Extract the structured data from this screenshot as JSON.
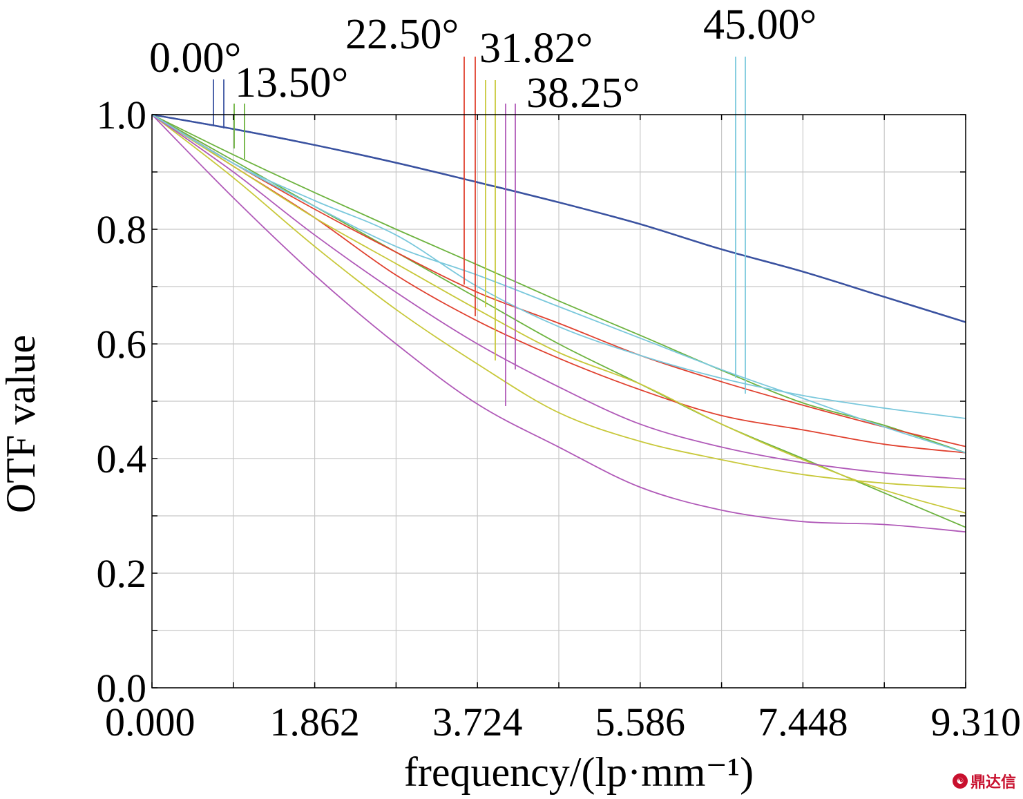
{
  "chart_data": {
    "type": "line",
    "title": "",
    "xlabel": "frequency/(lp·mm⁻¹)",
    "ylabel": "OTF value",
    "xlim": [
      0,
      9.31
    ],
    "ylim": [
      0,
      1.0
    ],
    "x_ticks": [
      "0.000",
      "1.862",
      "3.724",
      "5.586",
      "7.448",
      "9.310"
    ],
    "y_ticks": [
      "0.0",
      "0.2",
      "0.4",
      "0.6",
      "0.8",
      "1.0"
    ],
    "grid": true,
    "x": [
      0,
      0.931,
      1.862,
      2.793,
      3.724,
      4.655,
      5.586,
      6.517,
      7.448,
      8.379,
      9.31
    ],
    "series": [
      {
        "field": "0.00°",
        "color": "#3a52a0",
        "values": [
          1.0,
          0.975,
          0.947,
          0.916,
          0.882,
          0.847,
          0.809,
          0.765,
          0.726,
          0.682,
          0.638
        ]
      },
      {
        "field": "0.00°",
        "color": "#3a52a0",
        "values": [
          1.0,
          0.975,
          0.947,
          0.916,
          0.882,
          0.847,
          0.809,
          0.765,
          0.726,
          0.682,
          0.638
        ]
      },
      {
        "field": "13.50°",
        "color": "#6db33f",
        "values": [
          1.0,
          0.93,
          0.864,
          0.8,
          0.738,
          0.675,
          0.615,
          0.554,
          0.497,
          0.458,
          0.41
        ]
      },
      {
        "field": "13.50°",
        "color": "#6db33f",
        "values": [
          1.0,
          0.92,
          0.84,
          0.76,
          0.68,
          0.6,
          0.53,
          0.46,
          0.4,
          0.34,
          0.28
        ]
      },
      {
        "field": "22.50°",
        "color": "#e0412f",
        "values": [
          1.0,
          0.915,
          0.835,
          0.76,
          0.69,
          0.636,
          0.58,
          0.534,
          0.493,
          0.455,
          0.421
        ]
      },
      {
        "field": "22.50°",
        "color": "#e0412f",
        "values": [
          1.0,
          0.91,
          0.82,
          0.72,
          0.64,
          0.575,
          0.52,
          0.475,
          0.45,
          0.425,
          0.41
        ]
      },
      {
        "field": "31.82°",
        "color": "#c8c83a",
        "values": [
          1.0,
          0.91,
          0.82,
          0.74,
          0.66,
          0.585,
          0.53,
          0.46,
          0.398,
          0.345,
          0.305
        ]
      },
      {
        "field": "31.82°",
        "color": "#c8c83a",
        "values": [
          1.0,
          0.89,
          0.77,
          0.66,
          0.565,
          0.48,
          0.43,
          0.398,
          0.372,
          0.357,
          0.348
        ]
      },
      {
        "field": "38.25°",
        "color": "#b059b8",
        "values": [
          1.0,
          0.9,
          0.79,
          0.69,
          0.6,
          0.525,
          0.46,
          0.42,
          0.393,
          0.375,
          0.364
        ]
      },
      {
        "field": "38.25°",
        "color": "#b059b8",
        "values": [
          1.0,
          0.855,
          0.72,
          0.6,
          0.495,
          0.42,
          0.35,
          0.31,
          0.29,
          0.285,
          0.272
        ]
      },
      {
        "field": "45.00°",
        "color": "#7ac8dc",
        "values": [
          1.0,
          0.915,
          0.85,
          0.79,
          0.7,
          0.63,
          0.58,
          0.54,
          0.51,
          0.488,
          0.47
        ]
      },
      {
        "field": "45.00°",
        "color": "#7ac8dc",
        "values": [
          1.0,
          0.915,
          0.84,
          0.77,
          0.72,
          0.665,
          0.61,
          0.555,
          0.505,
          0.455,
          0.41
        ]
      }
    ],
    "field_labels": [
      "0.00°",
      "13.50°",
      "22.50°",
      "31.82°",
      "38.25°",
      "45.00°"
    ]
  },
  "watermark": {
    "text": "鼎达信"
  }
}
